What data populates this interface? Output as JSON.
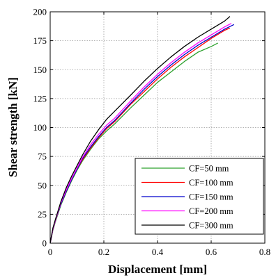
{
  "chart_data": {
    "type": "line",
    "xlabel": "Displacement [mm]",
    "ylabel": "Shear strength [kN]",
    "xlim": [
      0,
      0.8
    ],
    "ylim": [
      0,
      200
    ],
    "xticks": [
      "0",
      "0.2",
      "0.4",
      "0.6",
      "0.8"
    ],
    "yticks": [
      "0",
      "25",
      "50",
      "75",
      "100",
      "125",
      "150",
      "175",
      "200"
    ],
    "grid": true,
    "legend_position": "bottom-right",
    "series": [
      {
        "name": "CF=50 mm",
        "color": "#2ca02c",
        "x": [
          0,
          0.01,
          0.02,
          0.04,
          0.06,
          0.08,
          0.1,
          0.12,
          0.15,
          0.18,
          0.21,
          0.24,
          0.3,
          0.35,
          0.4,
          0.45,
          0.5,
          0.55,
          0.6,
          0.625
        ],
        "y": [
          0,
          11,
          19,
          33,
          44,
          54,
          63,
          71,
          81,
          90,
          97,
          103,
          117,
          128,
          139,
          148,
          157,
          165,
          170,
          173
        ]
      },
      {
        "name": "CF=100 mm",
        "color": "#ff0000",
        "x": [
          0,
          0.01,
          0.02,
          0.04,
          0.06,
          0.08,
          0.1,
          0.12,
          0.15,
          0.18,
          0.21,
          0.24,
          0.3,
          0.35,
          0.4,
          0.45,
          0.5,
          0.55,
          0.6,
          0.65,
          0.67
        ],
        "y": [
          0,
          12,
          20,
          34,
          45,
          55,
          64,
          72,
          82,
          91,
          99,
          105,
          120,
          131,
          142,
          152,
          161,
          169,
          177,
          184,
          186
        ]
      },
      {
        "name": "CF=150 mm",
        "color": "#0000cc",
        "x": [
          0,
          0.01,
          0.02,
          0.04,
          0.06,
          0.08,
          0.1,
          0.12,
          0.15,
          0.18,
          0.21,
          0.24,
          0.3,
          0.35,
          0.4,
          0.45,
          0.5,
          0.55,
          0.6,
          0.65,
          0.685
        ],
        "y": [
          0,
          12,
          20,
          34,
          45,
          55,
          64,
          73,
          83,
          92,
          100,
          106,
          121,
          133,
          144,
          154,
          163,
          171,
          178,
          185,
          189
        ]
      },
      {
        "name": "CF=200 mm",
        "color": "#ff00ff",
        "x": [
          0,
          0.01,
          0.02,
          0.04,
          0.06,
          0.08,
          0.1,
          0.12,
          0.15,
          0.18,
          0.21,
          0.24,
          0.3,
          0.35,
          0.4,
          0.45,
          0.5,
          0.55,
          0.6,
          0.65,
          0.675
        ],
        "y": [
          0,
          12,
          20,
          35,
          46,
          56,
          65,
          74,
          85,
          94,
          102,
          108,
          123,
          135,
          146,
          156,
          165,
          173,
          180,
          187,
          190
        ]
      },
      {
        "name": "CF=300 mm",
        "color": "#000000",
        "x": [
          0,
          0.01,
          0.02,
          0.04,
          0.06,
          0.08,
          0.1,
          0.12,
          0.15,
          0.18,
          0.21,
          0.24,
          0.3,
          0.35,
          0.4,
          0.45,
          0.5,
          0.55,
          0.6,
          0.65,
          0.67
        ],
        "y": [
          0,
          13,
          21,
          36,
          48,
          58,
          67,
          76,
          88,
          98,
          107,
          114,
          128,
          140,
          151,
          161,
          170,
          178,
          185,
          192,
          196
        ]
      }
    ]
  }
}
